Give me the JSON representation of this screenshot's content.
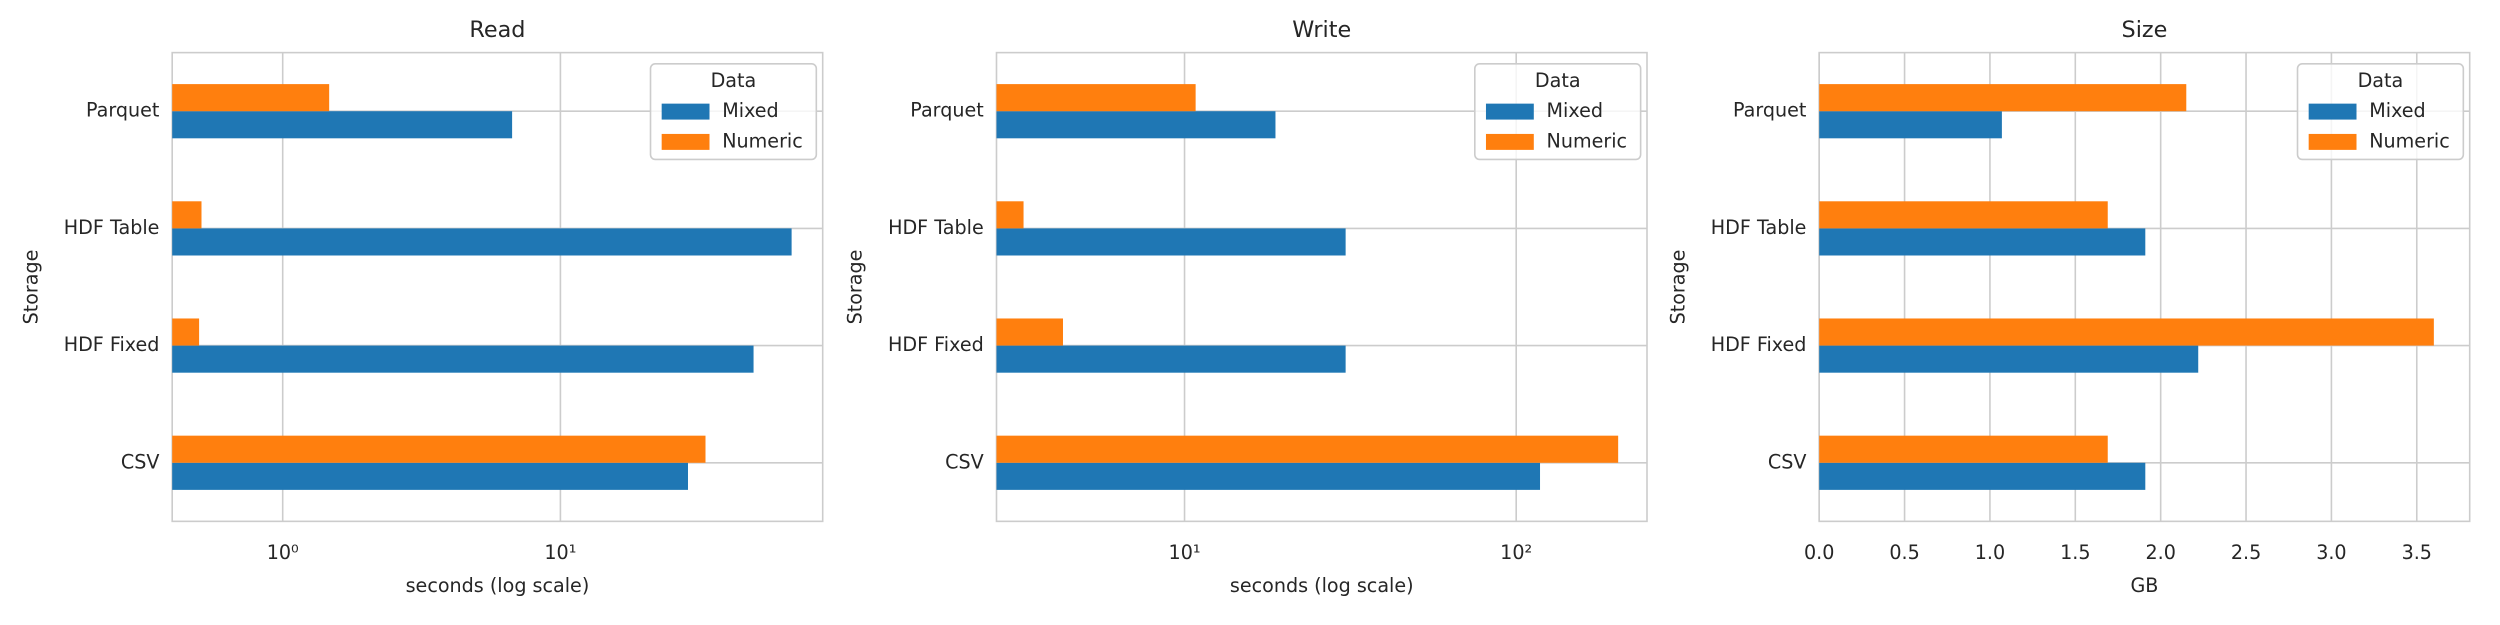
{
  "chart_data": [
    {
      "type": "bar",
      "orientation": "horizontal",
      "title": "Read",
      "xlabel": "seconds (log scale)",
      "ylabel": "Storage",
      "categories": [
        "CSV",
        "HDF Fixed",
        "HDF Table",
        "Parquet"
      ],
      "series": [
        {
          "name": "Mixed",
          "color": "#1f77b4",
          "values": [
            28.8,
            49.6,
            68,
            6.7
          ]
        },
        {
          "name": "Numeric",
          "color": "#ff7f0e",
          "values": [
            33.3,
            0.5,
            0.51,
            1.47
          ]
        }
      ],
      "xlim": [
        0.4,
        88
      ],
      "log_x": true,
      "xticks": [
        {
          "value": 1,
          "label": "10⁰"
        },
        {
          "value": 10,
          "label": "10¹"
        }
      ],
      "legend_title": "Data",
      "legend": "upper right",
      "grid": true
    },
    {
      "type": "bar",
      "orientation": "horizontal",
      "title": "Write",
      "xlabel": "seconds (log scale)",
      "ylabel": "Storage",
      "categories": [
        "CSV",
        "HDF Fixed",
        "HDF Table",
        "Parquet"
      ],
      "series": [
        {
          "name": "Mixed",
          "color": "#1f77b4",
          "values": [
            118,
            30.6,
            30.6,
            18.8
          ]
        },
        {
          "name": "Numeric",
          "color": "#ff7f0e",
          "values": [
            203,
            4.3,
            3.27,
            10.8
          ]
        }
      ],
      "xlim": [
        2.71,
        248
      ],
      "log_x": true,
      "xticks": [
        {
          "value": 10,
          "label": "10¹"
        },
        {
          "value": 100,
          "label": "10²"
        }
      ],
      "legend_title": "Data",
      "legend": "upper right",
      "grid": true
    },
    {
      "type": "bar",
      "orientation": "horizontal",
      "title": "Size",
      "xlabel": "GB",
      "ylabel": "Storage",
      "categories": [
        "CSV",
        "HDF Fixed",
        "HDF Table",
        "Parquet"
      ],
      "series": [
        {
          "name": "Mixed",
          "color": "#1f77b4",
          "values": [
            1.91,
            2.22,
            1.91,
            1.07
          ]
        },
        {
          "name": "Numeric",
          "color": "#ff7f0e",
          "values": [
            1.69,
            3.6,
            1.69,
            2.15
          ]
        }
      ],
      "xlim": [
        0,
        3.81
      ],
      "log_x": false,
      "xticks": [
        {
          "value": 0,
          "label": "0.0"
        },
        0.5,
        {
          "value": 1,
          "label": "1.0"
        },
        1.5,
        {
          "value": 2,
          "label": "2.0"
        },
        2.5,
        {
          "value": 3,
          "label": "3.0"
        },
        3.5
      ],
      "legend_title": "Data",
      "legend": "upper right",
      "grid": true
    }
  ]
}
